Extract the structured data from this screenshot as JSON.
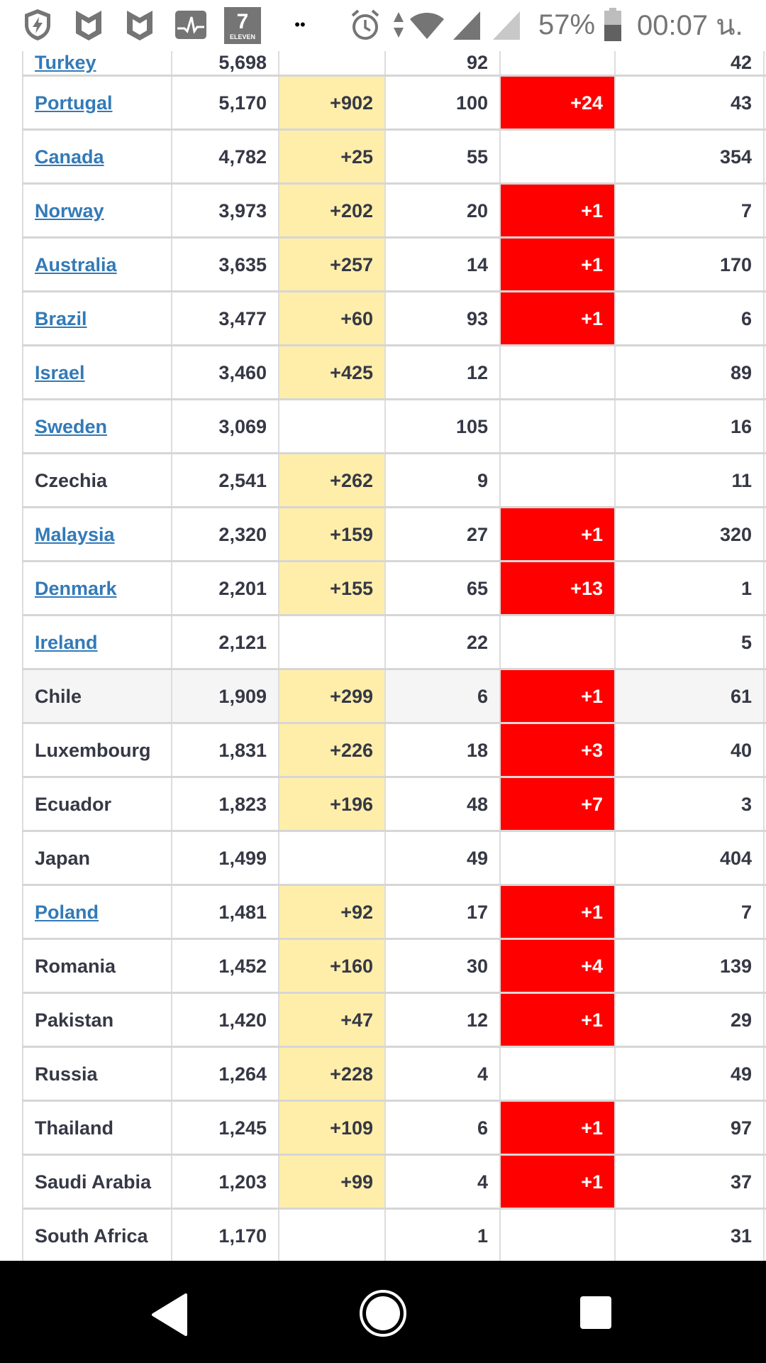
{
  "status_bar": {
    "icons": [
      "shield-bolt-icon",
      "malwarebytes-icon",
      "malwarebytes-icon",
      "activity-monitor-icon",
      "seven-eleven-icon",
      "more-dots-icon",
      "alarm-icon",
      "data-arrows-icon",
      "wifi-icon",
      "signal-icon",
      "signal-empty-icon",
      "battery-icon"
    ],
    "seven_eleven_text": "ELEVEN",
    "battery": "57%",
    "battery_level": 0.57,
    "time": "00:07 น."
  },
  "colors": {
    "new_cases": "#ffeeaa",
    "new_deaths": "#ff0000",
    "link": "#337ab7"
  },
  "rows": [
    {
      "country": "Turkey",
      "link": true,
      "total": "5,698",
      "new": "",
      "deaths": "92",
      "new_deaths": "",
      "recovered": "42"
    },
    {
      "country": "Portugal",
      "link": true,
      "total": "5,170",
      "new": "+902",
      "deaths": "100",
      "new_deaths": "+24",
      "recovered": "43"
    },
    {
      "country": "Canada",
      "link": true,
      "total": "4,782",
      "new": "+25",
      "deaths": "55",
      "new_deaths": "",
      "recovered": "354"
    },
    {
      "country": "Norway",
      "link": true,
      "total": "3,973",
      "new": "+202",
      "deaths": "20",
      "new_deaths": "+1",
      "recovered": "7"
    },
    {
      "country": "Australia",
      "link": true,
      "total": "3,635",
      "new": "+257",
      "deaths": "14",
      "new_deaths": "+1",
      "recovered": "170"
    },
    {
      "country": "Brazil",
      "link": true,
      "total": "3,477",
      "new": "+60",
      "deaths": "93",
      "new_deaths": "+1",
      "recovered": "6"
    },
    {
      "country": "Israel",
      "link": true,
      "total": "3,460",
      "new": "+425",
      "deaths": "12",
      "new_deaths": "",
      "recovered": "89"
    },
    {
      "country": "Sweden",
      "link": true,
      "total": "3,069",
      "new": "",
      "deaths": "105",
      "new_deaths": "",
      "recovered": "16"
    },
    {
      "country": "Czechia",
      "link": false,
      "total": "2,541",
      "new": "+262",
      "deaths": "9",
      "new_deaths": "",
      "recovered": "11"
    },
    {
      "country": "Malaysia",
      "link": true,
      "total": "2,320",
      "new": "+159",
      "deaths": "27",
      "new_deaths": "+1",
      "recovered": "320"
    },
    {
      "country": "Denmark",
      "link": true,
      "total": "2,201",
      "new": "+155",
      "deaths": "65",
      "new_deaths": "+13",
      "recovered": "1"
    },
    {
      "country": "Ireland",
      "link": true,
      "total": "2,121",
      "new": "",
      "deaths": "22",
      "new_deaths": "",
      "recovered": "5"
    },
    {
      "country": "Chile",
      "link": false,
      "highlight": true,
      "total": "1,909",
      "new": "+299",
      "deaths": "6",
      "new_deaths": "+1",
      "recovered": "61"
    },
    {
      "country": "Luxembourg",
      "link": false,
      "total": "1,831",
      "new": "+226",
      "deaths": "18",
      "new_deaths": "+3",
      "recovered": "40"
    },
    {
      "country": "Ecuador",
      "link": false,
      "total": "1,823",
      "new": "+196",
      "deaths": "48",
      "new_deaths": "+7",
      "recovered": "3"
    },
    {
      "country": "Japan",
      "link": false,
      "total": "1,499",
      "new": "",
      "deaths": "49",
      "new_deaths": "",
      "recovered": "404"
    },
    {
      "country": "Poland",
      "link": true,
      "total": "1,481",
      "new": "+92",
      "deaths": "17",
      "new_deaths": "+1",
      "recovered": "7"
    },
    {
      "country": "Romania",
      "link": false,
      "total": "1,452",
      "new": "+160",
      "deaths": "30",
      "new_deaths": "+4",
      "recovered": "139"
    },
    {
      "country": "Pakistan",
      "link": false,
      "total": "1,420",
      "new": "+47",
      "deaths": "12",
      "new_deaths": "+1",
      "recovered": "29"
    },
    {
      "country": "Russia",
      "link": false,
      "total": "1,264",
      "new": "+228",
      "deaths": "4",
      "new_deaths": "",
      "recovered": "49"
    },
    {
      "country": "Thailand",
      "link": false,
      "total": "1,245",
      "new": "+109",
      "deaths": "6",
      "new_deaths": "+1",
      "recovered": "97"
    },
    {
      "country": "Saudi Arabia",
      "link": false,
      "total": "1,203",
      "new": "+99",
      "deaths": "4",
      "new_deaths": "+1",
      "recovered": "37"
    },
    {
      "country": "South Africa",
      "link": false,
      "total": "1,170",
      "new": "",
      "deaths": "1",
      "new_deaths": "",
      "recovered": "31"
    },
    {
      "country": "",
      "link": false,
      "total": "",
      "new": "+",
      "deaths": "",
      "new_deaths": "+",
      "recovered": ""
    }
  ],
  "nav_bar": {
    "icons": [
      "back-icon",
      "home-icon",
      "recents-icon"
    ]
  }
}
